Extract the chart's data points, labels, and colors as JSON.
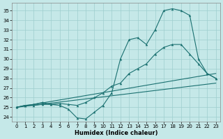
{
  "xlabel": "Humidex (Indice chaleur)",
  "xlim": [
    -0.5,
    23.5
  ],
  "ylim": [
    23.5,
    35.8
  ],
  "xticks": [
    0,
    1,
    2,
    3,
    4,
    5,
    6,
    7,
    8,
    9,
    10,
    11,
    12,
    13,
    14,
    15,
    16,
    17,
    18,
    19,
    20,
    21,
    22,
    23
  ],
  "yticks": [
    24,
    25,
    26,
    27,
    28,
    29,
    30,
    31,
    32,
    33,
    34,
    35
  ],
  "bg_color": "#c5e8e8",
  "grid_color": "#9dcece",
  "line_color": "#1a7070",
  "line1_x": [
    0,
    1,
    2,
    3,
    4,
    5,
    6,
    7,
    8,
    9,
    10,
    11,
    12,
    13,
    14,
    15,
    16,
    17,
    18,
    19,
    20,
    21,
    22,
    23
  ],
  "line1_y": [
    25.0,
    25.2,
    25.2,
    25.3,
    25.3,
    25.2,
    24.8,
    23.9,
    23.8,
    24.5,
    25.2,
    26.5,
    30.0,
    32.0,
    32.2,
    31.5,
    33.0,
    35.0,
    35.2,
    35.0,
    34.5,
    30.0,
    28.5,
    28.0
  ],
  "line2_x": [
    0,
    1,
    2,
    3,
    4,
    5,
    6,
    7,
    8,
    9,
    10,
    11,
    12,
    13,
    14,
    15,
    16,
    17,
    18,
    19,
    20,
    21,
    22,
    23
  ],
  "line2_y": [
    25.0,
    25.2,
    25.3,
    25.5,
    25.3,
    25.4,
    25.3,
    25.2,
    25.5,
    26.0,
    26.5,
    27.2,
    27.5,
    28.5,
    29.0,
    29.5,
    30.5,
    31.2,
    31.5,
    31.5,
    30.5,
    29.5,
    28.5,
    28.0
  ],
  "line3_x": [
    0,
    23
  ],
  "line3_y": [
    25.0,
    28.5
  ],
  "line4_x": [
    0,
    23
  ],
  "line4_y": [
    25.0,
    27.5
  ]
}
